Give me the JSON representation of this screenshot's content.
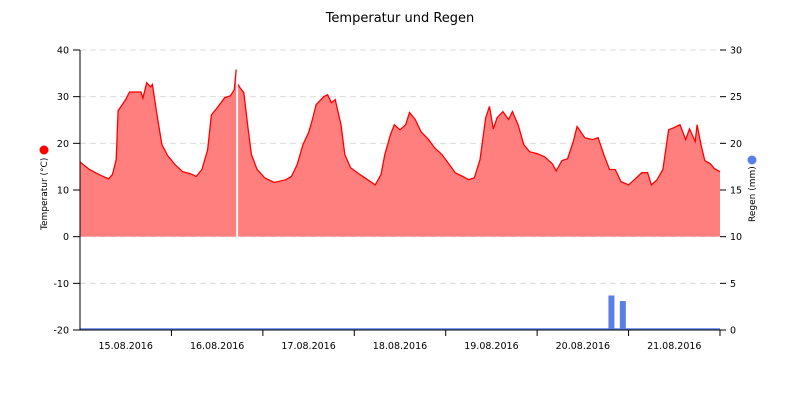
{
  "chart_data": {
    "type": "area",
    "title": "Temperatur und Regen",
    "xlabel": "",
    "x_range": [
      "2016-08-15 00:00",
      "2016-08-22 00:00"
    ],
    "x_tick_labels": [
      "15.08.2016",
      "16.08.2016",
      "17.08.2016",
      "18.08.2016",
      "19.08.2016",
      "20.08.2016",
      "21.08.2016"
    ],
    "grid": true,
    "axes": {
      "left": {
        "label": "Temperatur (°C)",
        "ylim": [
          -20,
          40
        ],
        "ticks": [
          "40",
          "30",
          "20",
          "10",
          "0",
          "-10",
          "-20"
        ]
      },
      "right": {
        "label": "Regen (mm)",
        "ylim": [
          0,
          30
        ],
        "ticks": [
          "30",
          "25",
          "20",
          "15",
          "10",
          "5",
          "0"
        ]
      }
    },
    "colors": {
      "temperature": "#ff0000",
      "temperature_fill": "#ff7f7f",
      "rain": "#5b7fe8"
    },
    "series": [
      {
        "name": "Temperatur (°C)",
        "axis": "left",
        "type": "area",
        "points": [
          [
            "2016-08-15 00:00",
            16.0
          ],
          [
            "2016-08-15 02:30",
            14.4
          ],
          [
            "2016-08-15 05:00",
            13.3
          ],
          [
            "2016-08-15 07:30",
            12.4
          ],
          [
            "2016-08-15 08:30",
            13.3
          ],
          [
            "2016-08-15 09:30",
            16.5
          ],
          [
            "2016-08-15 10:00",
            27.0
          ],
          [
            "2016-08-15 12:00",
            29.4
          ],
          [
            "2016-08-15 13:00",
            31.0
          ],
          [
            "2016-08-15 16:00",
            31.0
          ],
          [
            "2016-08-15 16:30",
            29.7
          ],
          [
            "2016-08-15 17:30",
            33.0
          ],
          [
            "2016-08-15 18:30",
            32.1
          ],
          [
            "2016-08-15 19:00",
            32.6
          ],
          [
            "2016-08-15 20:00",
            27.2
          ],
          [
            "2016-08-15 21:30",
            19.7
          ],
          [
            "2016-08-15 23:00",
            17.4
          ],
          [
            "2016-08-16 01:00",
            15.4
          ],
          [
            "2016-08-16 03:00",
            13.9
          ],
          [
            "2016-08-16 05:00",
            13.5
          ],
          [
            "2016-08-16 06:30",
            12.9
          ],
          [
            "2016-08-16 08:00",
            14.4
          ],
          [
            "2016-08-16 09:30",
            18.6
          ],
          [
            "2016-08-16 10:30",
            26.1
          ],
          [
            "2016-08-16 12:00",
            27.6
          ],
          [
            "2016-08-16 14:00",
            29.8
          ],
          [
            "2016-08-16 15:30",
            30.2
          ],
          [
            "2016-08-16 16:30",
            31.5
          ],
          [
            "2016-08-16 17:00",
            35.8
          ],
          [
            "2016-08-16 17:15",
            null
          ],
          [
            "2016-08-16 17:30",
            32.6
          ],
          [
            "2016-08-16 18:00",
            31.9
          ],
          [
            "2016-08-16 19:00",
            30.9
          ],
          [
            "2016-08-16 20:00",
            24.0
          ],
          [
            "2016-08-16 21:00",
            17.6
          ],
          [
            "2016-08-16 22:30",
            14.4
          ],
          [
            "2016-08-17 00:30",
            12.6
          ],
          [
            "2016-08-17 03:00",
            11.6
          ],
          [
            "2016-08-17 06:00",
            12.2
          ],
          [
            "2016-08-17 07:30",
            12.9
          ],
          [
            "2016-08-17 09:00",
            15.4
          ],
          [
            "2016-08-17 10:30",
            19.7
          ],
          [
            "2016-08-17 12:00",
            22.3
          ],
          [
            "2016-08-17 13:00",
            25.1
          ],
          [
            "2016-08-17 14:00",
            28.3
          ],
          [
            "2016-08-17 16:00",
            30.0
          ],
          [
            "2016-08-17 17:00",
            30.4
          ],
          [
            "2016-08-17 18:00",
            28.7
          ],
          [
            "2016-08-17 19:00",
            29.4
          ],
          [
            "2016-08-17 20:30",
            24.0
          ],
          [
            "2016-08-17 21:30",
            17.6
          ],
          [
            "2016-08-17 23:00",
            14.8
          ],
          [
            "2016-08-18 01:30",
            13.3
          ],
          [
            "2016-08-18 03:30",
            12.2
          ],
          [
            "2016-08-18 05:30",
            11.1
          ],
          [
            "2016-08-18 07:00",
            13.3
          ],
          [
            "2016-08-18 08:00",
            17.6
          ],
          [
            "2016-08-18 09:30",
            21.9
          ],
          [
            "2016-08-18 10:30",
            24.0
          ],
          [
            "2016-08-18 12:00",
            22.9
          ],
          [
            "2016-08-18 13:30",
            24.0
          ],
          [
            "2016-08-18 14:30",
            26.6
          ],
          [
            "2016-08-18 16:00",
            25.1
          ],
          [
            "2016-08-18 17:30",
            22.5
          ],
          [
            "2016-08-18 19:30",
            20.8
          ],
          [
            "2016-08-18 21:00",
            19.1
          ],
          [
            "2016-08-18 23:00",
            17.6
          ],
          [
            "2016-08-19 01:00",
            15.4
          ],
          [
            "2016-08-19 02:30",
            13.7
          ],
          [
            "2016-08-19 04:30",
            12.9
          ],
          [
            "2016-08-19 06:00",
            12.2
          ],
          [
            "2016-08-19 07:30",
            12.6
          ],
          [
            "2016-08-19 09:00",
            16.5
          ],
          [
            "2016-08-19 10:30",
            25.5
          ],
          [
            "2016-08-19 11:30",
            27.9
          ],
          [
            "2016-08-19 12:30",
            23.1
          ],
          [
            "2016-08-19 13:30",
            25.5
          ],
          [
            "2016-08-19 15:00",
            26.8
          ],
          [
            "2016-08-19 16:30",
            25.1
          ],
          [
            "2016-08-19 17:30",
            26.8
          ],
          [
            "2016-08-19 19:00",
            24.0
          ],
          [
            "2016-08-19 20:30",
            19.7
          ],
          [
            "2016-08-19 22:00",
            18.2
          ],
          [
            "2016-08-20 00:00",
            17.8
          ],
          [
            "2016-08-20 02:00",
            17.1
          ],
          [
            "2016-08-20 04:00",
            15.6
          ],
          [
            "2016-08-20 05:00",
            14.1
          ],
          [
            "2016-08-20 06:30",
            16.3
          ],
          [
            "2016-08-20 08:00",
            16.7
          ],
          [
            "2016-08-20 09:30",
            20.4
          ],
          [
            "2016-08-20 10:30",
            23.6
          ],
          [
            "2016-08-20 12:30",
            21.2
          ],
          [
            "2016-08-20 14:30",
            20.8
          ],
          [
            "2016-08-20 16:00",
            21.2
          ],
          [
            "2016-08-20 17:30",
            17.6
          ],
          [
            "2016-08-20 19:00",
            14.4
          ],
          [
            "2016-08-20 20:30",
            14.4
          ],
          [
            "2016-08-20 22:00",
            11.8
          ],
          [
            "2016-08-21 00:00",
            11.1
          ],
          [
            "2016-08-21 01:30",
            12.2
          ],
          [
            "2016-08-21 03:30",
            13.7
          ],
          [
            "2016-08-21 05:00",
            13.7
          ],
          [
            "2016-08-21 06:00",
            11.1
          ],
          [
            "2016-08-21 07:30",
            12.2
          ],
          [
            "2016-08-21 09:00",
            14.4
          ],
          [
            "2016-08-21 10:30",
            22.9
          ],
          [
            "2016-08-21 12:00",
            23.4
          ],
          [
            "2016-08-21 13:30",
            24.0
          ],
          [
            "2016-08-21 15:00",
            20.8
          ],
          [
            "2016-08-21 16:00",
            23.1
          ],
          [
            "2016-08-21 17:30",
            20.4
          ],
          [
            "2016-08-21 18:00",
            24.0
          ],
          [
            "2016-08-21 19:00",
            19.7
          ],
          [
            "2016-08-21 20:00",
            16.3
          ],
          [
            "2016-08-21 21:30",
            15.6
          ],
          [
            "2016-08-21 22:30",
            14.6
          ],
          [
            "2016-08-22 00:00",
            13.9
          ]
        ]
      },
      {
        "name": "Regen (mm)",
        "axis": "right",
        "type": "bar",
        "points": [
          [
            "2016-08-20 19:30",
            3.7
          ],
          [
            "2016-08-20 22:30",
            3.1
          ]
        ]
      }
    ]
  }
}
